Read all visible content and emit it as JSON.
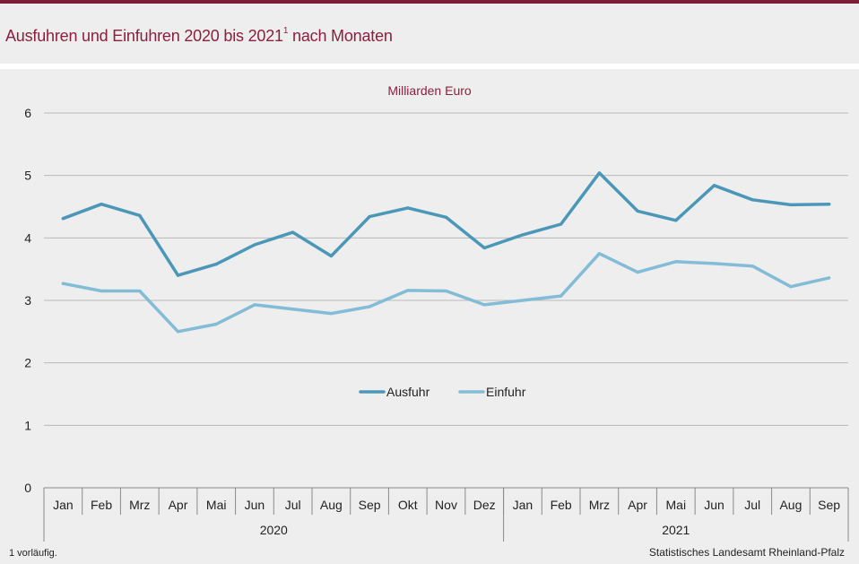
{
  "header": {
    "title": "Ausfuhren und Einfuhren 2020 bis 2021",
    "title_sup": "1",
    "title_suffix": " nach Monaten"
  },
  "footer": {
    "footnote": "1 vorläufig.",
    "source": "Statistisches Landesamt Rheinland-Pfalz"
  },
  "chart_data": {
    "type": "line",
    "unit_label": "Milliarden Euro",
    "categories": [
      "Jan",
      "Feb",
      "Mrz",
      "Apr",
      "Mai",
      "Jun",
      "Jul",
      "Aug",
      "Sep",
      "Okt",
      "Nov",
      "Dez",
      "Jan",
      "Feb",
      "Mrz",
      "Apr",
      "Mai",
      "Jun",
      "Jul",
      "Aug",
      "Sep"
    ],
    "years": [
      {
        "label": "2020",
        "count": 12
      },
      {
        "label": "2021",
        "count": 9
      }
    ],
    "ylim": [
      0,
      6
    ],
    "yticks": [
      0,
      1,
      2,
      3,
      4,
      5,
      6
    ],
    "grid": true,
    "legend_placement": "center",
    "series": [
      {
        "name": "Ausfuhr",
        "color": "#4b97b8",
        "values": [
          4.31,
          4.54,
          4.36,
          3.4,
          3.58,
          3.89,
          4.09,
          3.71,
          4.34,
          4.48,
          4.33,
          3.84,
          4.05,
          4.22,
          5.04,
          4.43,
          4.28,
          4.84,
          4.61,
          4.53,
          4.54
        ]
      },
      {
        "name": "Einfuhr",
        "color": "#83bcd6",
        "values": [
          3.27,
          3.15,
          3.15,
          2.5,
          2.62,
          2.93,
          2.86,
          2.79,
          2.9,
          3.16,
          3.15,
          2.93,
          3.0,
          3.07,
          3.75,
          3.45,
          3.62,
          3.59,
          3.55,
          3.22,
          3.36
        ]
      }
    ]
  }
}
